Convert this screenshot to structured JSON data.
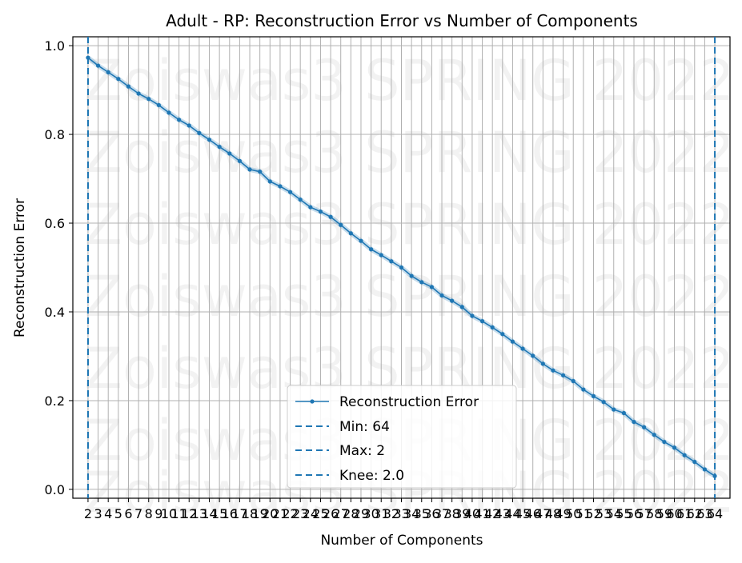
{
  "chart_data": {
    "type": "line",
    "title": "Adult - RP: Reconstruction Error vs Number of Components",
    "xlabel": "Number of Components",
    "ylabel": "Reconstruction Error",
    "x": [
      2,
      3,
      4,
      5,
      6,
      7,
      8,
      9,
      10,
      11,
      12,
      13,
      14,
      15,
      16,
      17,
      18,
      19,
      20,
      21,
      22,
      23,
      24,
      25,
      26,
      27,
      28,
      29,
      30,
      31,
      32,
      33,
      34,
      35,
      36,
      37,
      38,
      39,
      40,
      41,
      42,
      43,
      44,
      45,
      46,
      47,
      48,
      49,
      50,
      51,
      52,
      53,
      54,
      55,
      56,
      57,
      58,
      59,
      60,
      61,
      62,
      63,
      64
    ],
    "xlim": [
      0.5,
      65.5
    ],
    "ylim": [
      -0.02,
      1.02
    ],
    "yticks": [
      0.0,
      0.2,
      0.4,
      0.6,
      0.8,
      1.0
    ],
    "ytick_labels": [
      "0.0",
      "0.2",
      "0.4",
      "0.6",
      "0.8",
      "1.0"
    ],
    "series": [
      {
        "name": "Reconstruction Error",
        "color": "#1f77b4",
        "values": [
          0.973,
          0.955,
          0.94,
          0.925,
          0.908,
          0.892,
          0.88,
          0.866,
          0.849,
          0.833,
          0.82,
          0.803,
          0.788,
          0.772,
          0.757,
          0.74,
          0.721,
          0.716,
          0.694,
          0.683,
          0.67,
          0.653,
          0.636,
          0.626,
          0.614,
          0.596,
          0.577,
          0.56,
          0.541,
          0.528,
          0.514,
          0.5,
          0.481,
          0.467,
          0.456,
          0.437,
          0.425,
          0.411,
          0.391,
          0.379,
          0.365,
          0.35,
          0.333,
          0.317,
          0.301,
          0.283,
          0.268,
          0.257,
          0.244,
          0.225,
          0.21,
          0.197,
          0.18,
          0.172,
          0.152,
          0.14,
          0.123,
          0.107,
          0.094,
          0.077,
          0.062,
          0.045,
          0.03
        ]
      }
    ],
    "vlines": [
      {
        "label": "Min: 64",
        "x": 64,
        "color": "#1f77b4",
        "style": "dashed"
      },
      {
        "label": "Max: 2",
        "x": 2,
        "color": "#1f77b4",
        "style": "dashed"
      },
      {
        "label": "Knee: 2.0",
        "x": 2.0,
        "color": "#1f77b4",
        "style": "dashed"
      }
    ],
    "grid": true,
    "legend_position": "lower center",
    "watermark": "Zoiswas3 SPRING 2022"
  }
}
